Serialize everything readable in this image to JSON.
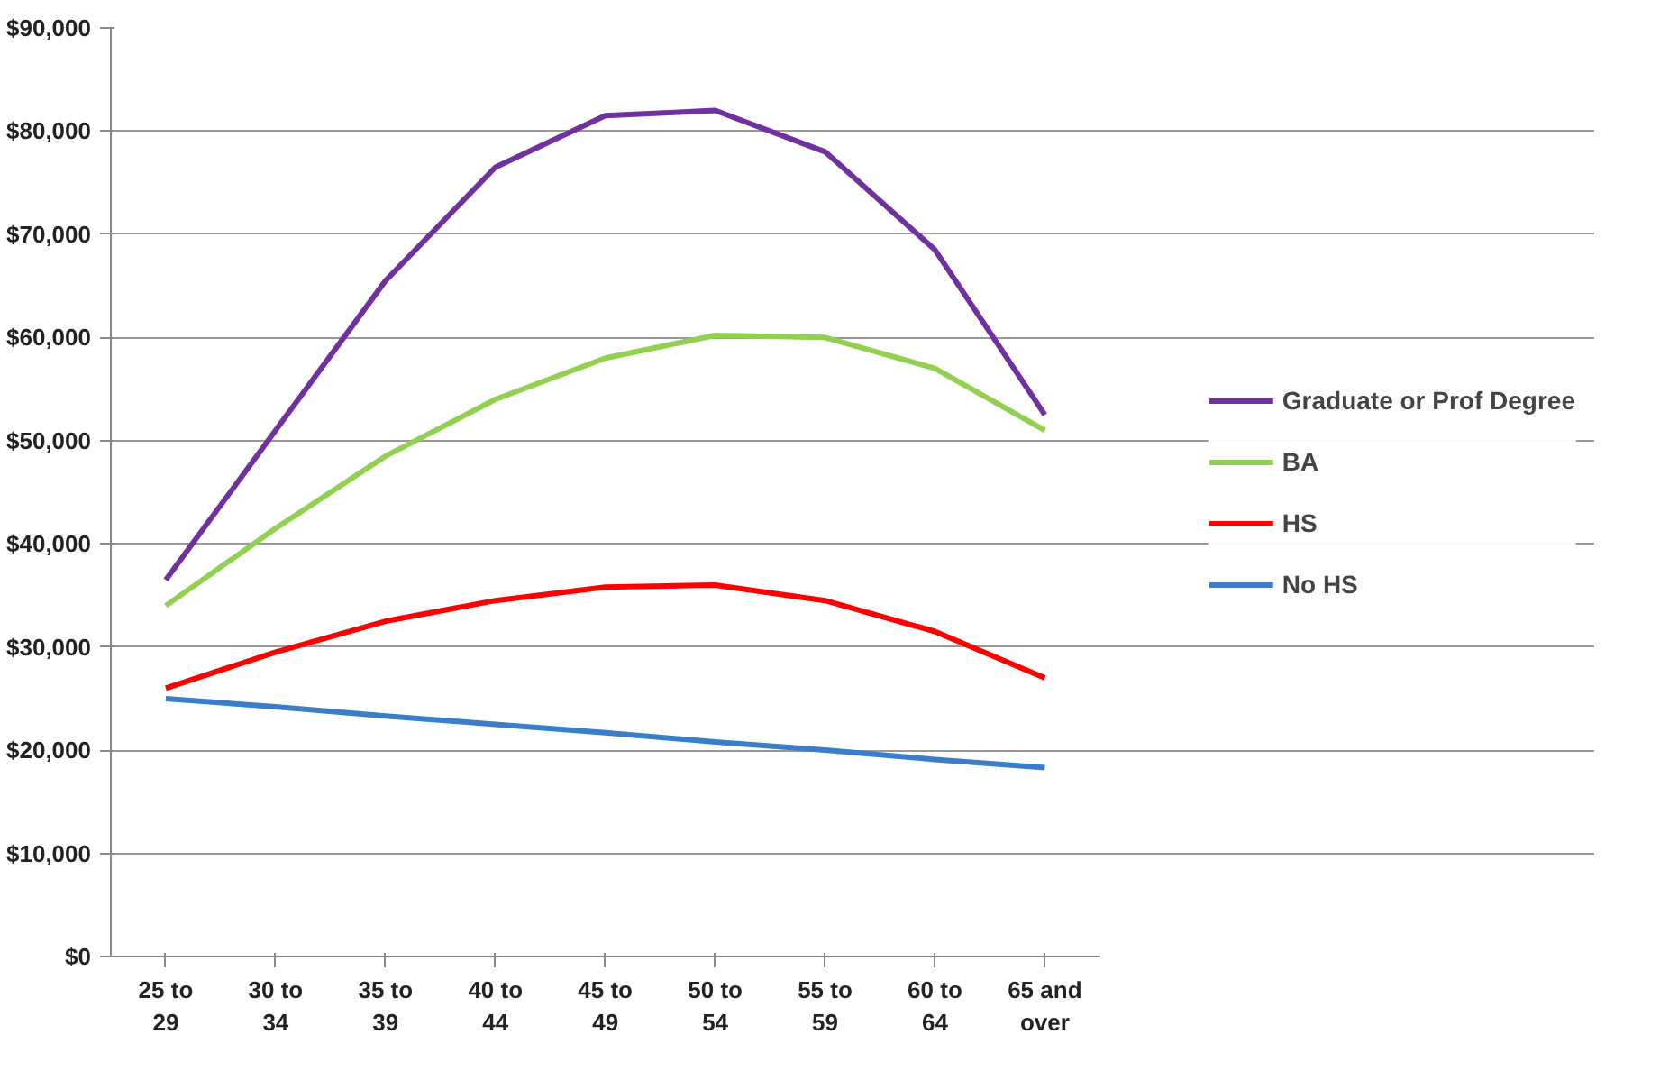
{
  "chart_data": {
    "type": "line",
    "categories": [
      "25 to 29",
      "30 to 34",
      "35 to 39",
      "40 to 44",
      "45 to 49",
      "50 to 54",
      "55 to 59",
      "60 to 64",
      "65 and over"
    ],
    "series": [
      {
        "name": "Graduate or Prof Degree",
        "color": "#7030a0",
        "values": [
          36500,
          51000,
          65500,
          76500,
          81500,
          82000,
          78000,
          68500,
          52500
        ]
      },
      {
        "name": "BA",
        "color": "#92d050",
        "values": [
          34000,
          41500,
          48500,
          54000,
          58000,
          60200,
          60000,
          57000,
          51000
        ]
      },
      {
        "name": "HS",
        "color": "#ff0000",
        "values": [
          26000,
          29500,
          32500,
          34500,
          35800,
          36000,
          34500,
          31500,
          27000
        ]
      },
      {
        "name": "No HS",
        "color": "#3a7dc9",
        "values": [
          25000,
          24200,
          23300,
          22500,
          21700,
          20800,
          20000,
          19100,
          18300
        ]
      }
    ],
    "ylim": [
      0,
      90000
    ],
    "yticks": [
      {
        "value": 0,
        "label": "$0"
      },
      {
        "value": 10000,
        "label": "$10,000"
      },
      {
        "value": 20000,
        "label": "$20,000"
      },
      {
        "value": 30000,
        "label": "$30,000"
      },
      {
        "value": 40000,
        "label": "$40,000"
      },
      {
        "value": 50000,
        "label": "$50,000"
      },
      {
        "value": 60000,
        "label": "$60,000"
      },
      {
        "value": 70000,
        "label": "$70,000"
      },
      {
        "value": 80000,
        "label": "$80,000"
      },
      {
        "value": 90000,
        "label": "$90,000"
      }
    ],
    "grid": "y",
    "legend": "right",
    "marker": "none",
    "line_style": "solid"
  }
}
